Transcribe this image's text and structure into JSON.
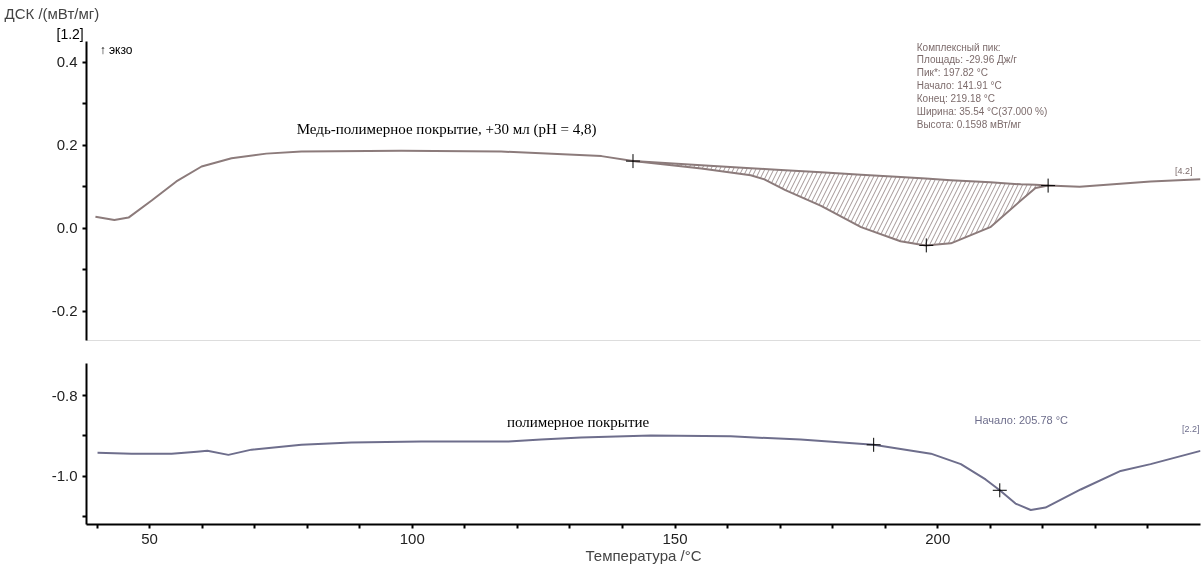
{
  "chart_data": [
    {
      "type": "line",
      "ylabel": "ДСК /(мВт/мг)",
      "xlim": [
        38,
        250
      ],
      "ylim": [
        -0.27,
        0.45
      ],
      "tick_labels": "y",
      "grid": false,
      "yticks": [
        -0.2,
        {
          "value": -0.1,
          "label": null
        },
        {
          "value": 0,
          "label": "0.0"
        },
        {
          "value": 0.1,
          "label": null
        },
        0.2,
        {
          "value": 0.3,
          "label": null
        },
        0.4
      ],
      "series": [
        {
          "color": "#8c7b7b",
          "x": [
            39.7,
            43.3,
            46,
            50.4,
            55.1,
            59.9,
            65.6,
            72.2,
            78.9,
            97.9,
            116.9,
            136,
            142,
            155,
            164.4,
            167,
            171,
            177.8,
            185.4,
            192.9,
            197.7,
            202.5,
            210,
            215.8,
            218.6,
            221,
            227,
            240.5,
            250
          ],
          "values": [
            0.028,
            0.02,
            0.026,
            0.067,
            0.113,
            0.149,
            0.169,
            0.18,
            0.185,
            0.187,
            0.185,
            0.174,
            0.162,
            0.144,
            0.128,
            0.118,
            0.092,
            0.054,
            0.003,
            -0.031,
            -0.041,
            -0.036,
            0.003,
            0.067,
            0.097,
            0.103,
            0.1,
            0.113,
            0.118
          ]
        },
        {
          "type": "line",
          "color": "#8c7b7b",
          "x": [
            142,
            155,
            164.4,
            167,
            171,
            177.8,
            185.4,
            192.9,
            197.7,
            202.5,
            210,
            215.8,
            218.6,
            221
          ],
          "values": [
            0.162,
            0.152,
            0.145,
            0.143,
            0.14,
            0.135,
            0.129,
            0.124,
            0.12,
            0.116,
            0.111,
            0.106,
            0.105,
            0.103
          ],
          "lower": [
            0.162,
            0.144,
            0.128,
            0.118,
            0.092,
            0.054,
            0.003,
            -0.031,
            -0.041,
            -0.036,
            0.003,
            0.067,
            0.097,
            0.103
          ],
          "upper": [
            0.162,
            0.152,
            0.145,
            0.143,
            0.14,
            0.135,
            0.129,
            0.124,
            0.12,
            0.116,
            0.111,
            0.106,
            0.105,
            0.103
          ]
        },
        {
          "type": "scatter",
          "marker": "cross",
          "color": "#000000",
          "x": [
            142,
            197.82,
            221
          ],
          "values": [
            0.162,
            -0.041,
            0.103
          ]
        }
      ],
      "annotations": [
        "[1.2]",
        "↑ экзо",
        "Медь-полимерное покрытие, +30 мл (pH = 4,8)",
        "Комплексный пик:\nПлощадь:  -29.96 Дж/г\nПик*:          197.82 °C\nНачало:      141.91 °C\nКонец:        219.18 °C\nШирина:       35.54 °C(37.000 %)\nВысота:         0.1598 мВт/мг",
        "[4.2]"
      ]
    },
    {
      "type": "line",
      "xlabel": "Температура /°C",
      "xlim": [
        38,
        250
      ],
      "ylim": [
        -1.12,
        -0.72
      ],
      "grid": false,
      "xticks": [
        {
          "value": 40,
          "label": null
        },
        50,
        {
          "value": 60,
          "label": null
        },
        {
          "value": 70,
          "label": null
        },
        {
          "value": 80,
          "label": null
        },
        {
          "value": 90,
          "label": null
        },
        100,
        {
          "value": 110,
          "label": null
        },
        {
          "value": 120,
          "label": null
        },
        {
          "value": 130,
          "label": null
        },
        {
          "value": 140,
          "label": null
        },
        150,
        {
          "value": 160,
          "label": null
        },
        {
          "value": 170,
          "label": null
        },
        {
          "value": 180,
          "label": null
        },
        {
          "value": 190,
          "label": null
        },
        200,
        {
          "value": 210,
          "label": null
        },
        {
          "value": 220,
          "label": null
        },
        {
          "value": 230,
          "label": null
        },
        {
          "value": 240,
          "label": null
        }
      ],
      "yticks": [
        {
          "value": -1.1,
          "label": null
        },
        {
          "value": -1,
          "label": "-1.0"
        },
        {
          "value": -0.9,
          "label": null
        },
        -0.8
      ],
      "series": [
        {
          "color": "#6e6e8c",
          "x": [
            40.1,
            46.6,
            54.2,
            59,
            61,
            65,
            69.4,
            78.9,
            88.4,
            101.7,
            118.3,
            124.5,
            132.1,
            145.4,
            160.6,
            173.9,
            187.8,
            198.7,
            204.4,
            209.1,
            211.8,
            214.8,
            217.7,
            220.5,
            227.2,
            234.8,
            240.5,
            250
          ],
          "values": [
            -0.942,
            -0.944,
            -0.944,
            -0.939,
            -0.937,
            -0.947,
            -0.934,
            -0.922,
            -0.916,
            -0.914,
            -0.914,
            -0.909,
            -0.904,
            -0.899,
            -0.901,
            -0.909,
            -0.922,
            -0.944,
            -0.97,
            -1.008,
            -1.035,
            -1.068,
            -1.084,
            -1.078,
            -1.033,
            -0.987,
            -0.97,
            -0.937
          ]
        },
        {
          "type": "scatter",
          "marker": "cross",
          "color": "#000000",
          "x": [
            187.8,
            211.8
          ],
          "values": [
            -0.922,
            -1.035
          ]
        }
      ],
      "annotations": [
        "полимерное покрытие",
        "Начало: 205.78 °C",
        "[2.2]"
      ]
    }
  ]
}
